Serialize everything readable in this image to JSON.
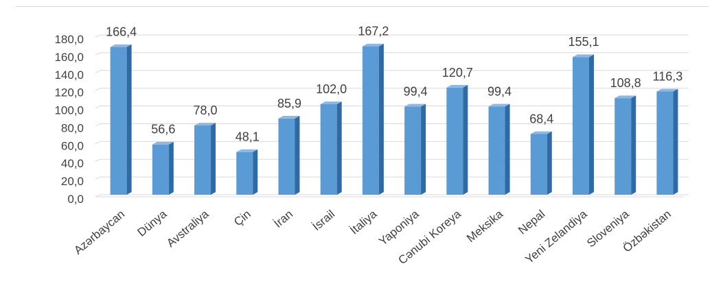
{
  "chart_data": {
    "type": "bar",
    "title": "",
    "xlabel": "",
    "ylabel": "",
    "ylim": [
      0,
      180
    ],
    "ytick_step": 20,
    "ytick_labels": [
      "0,0",
      "20,0",
      "40,0",
      "60,0",
      "80,0",
      "100,0",
      "120,0",
      "140,0",
      "160,0",
      "180,0"
    ],
    "grid": true,
    "legend": "none",
    "bar_style": "3d-column",
    "colors": {
      "bar_front": "#5b9bd5",
      "bar_side": "#2e6aa6",
      "bar_top": "#8db8e4",
      "grid": "#d9d9d9",
      "text": "#404040"
    },
    "categories": [
      "Azərbaycan",
      "Dünya",
      "Avstraliya",
      "Çin",
      "İran",
      "İsrail",
      "İtaliya",
      "Yaponiya",
      "Cənubi Koreya",
      "Meksika",
      "Nepal",
      "Yeni Zelandiya",
      "Sloveniya",
      "Özbəkistan"
    ],
    "values": [
      166.4,
      56.6,
      78.0,
      48.1,
      85.9,
      102.0,
      167.2,
      99.4,
      120.7,
      99.4,
      68.4,
      155.1,
      108.8,
      116.3
    ],
    "value_labels": [
      "166,4",
      "56,6",
      "78,0",
      "48,1",
      "85,9",
      "102,0",
      "167,2",
      "99,4",
      "120,7",
      "99,4",
      "68,4",
      "155,1",
      "108,8",
      "116,3"
    ]
  }
}
